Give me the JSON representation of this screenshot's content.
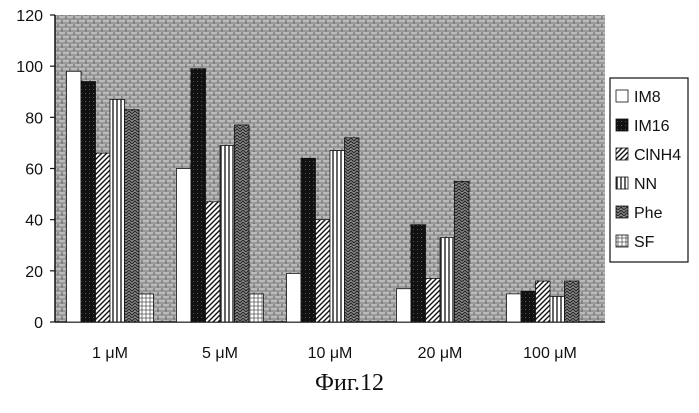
{
  "chart_data": {
    "type": "bar",
    "categories": [
      "1 μM",
      "5 μM",
      "10 μM",
      "20 μM",
      "100 μM"
    ],
    "series": [
      {
        "name": "IM8",
        "values": [
          98,
          60,
          19,
          13,
          11
        ]
      },
      {
        "name": "IM16",
        "values": [
          94,
          99,
          64,
          38,
          12
        ]
      },
      {
        "name": "ClNH4",
        "values": [
          66,
          47,
          40,
          17,
          16
        ]
      },
      {
        "name": "NN",
        "values": [
          87,
          69,
          67,
          33,
          10
        ]
      },
      {
        "name": "Phe",
        "values": [
          83,
          77,
          72,
          55,
          16
        ]
      },
      {
        "name": "SF",
        "values": [
          11,
          11,
          0,
          0,
          0
        ]
      }
    ],
    "yticks": [
      "0",
      "20",
      "40",
      "60",
      "80",
      "100",
      "120"
    ],
    "ylim": [
      0,
      120
    ],
    "legend_position": "right",
    "grid": false
  },
  "caption": "Фиг.12"
}
